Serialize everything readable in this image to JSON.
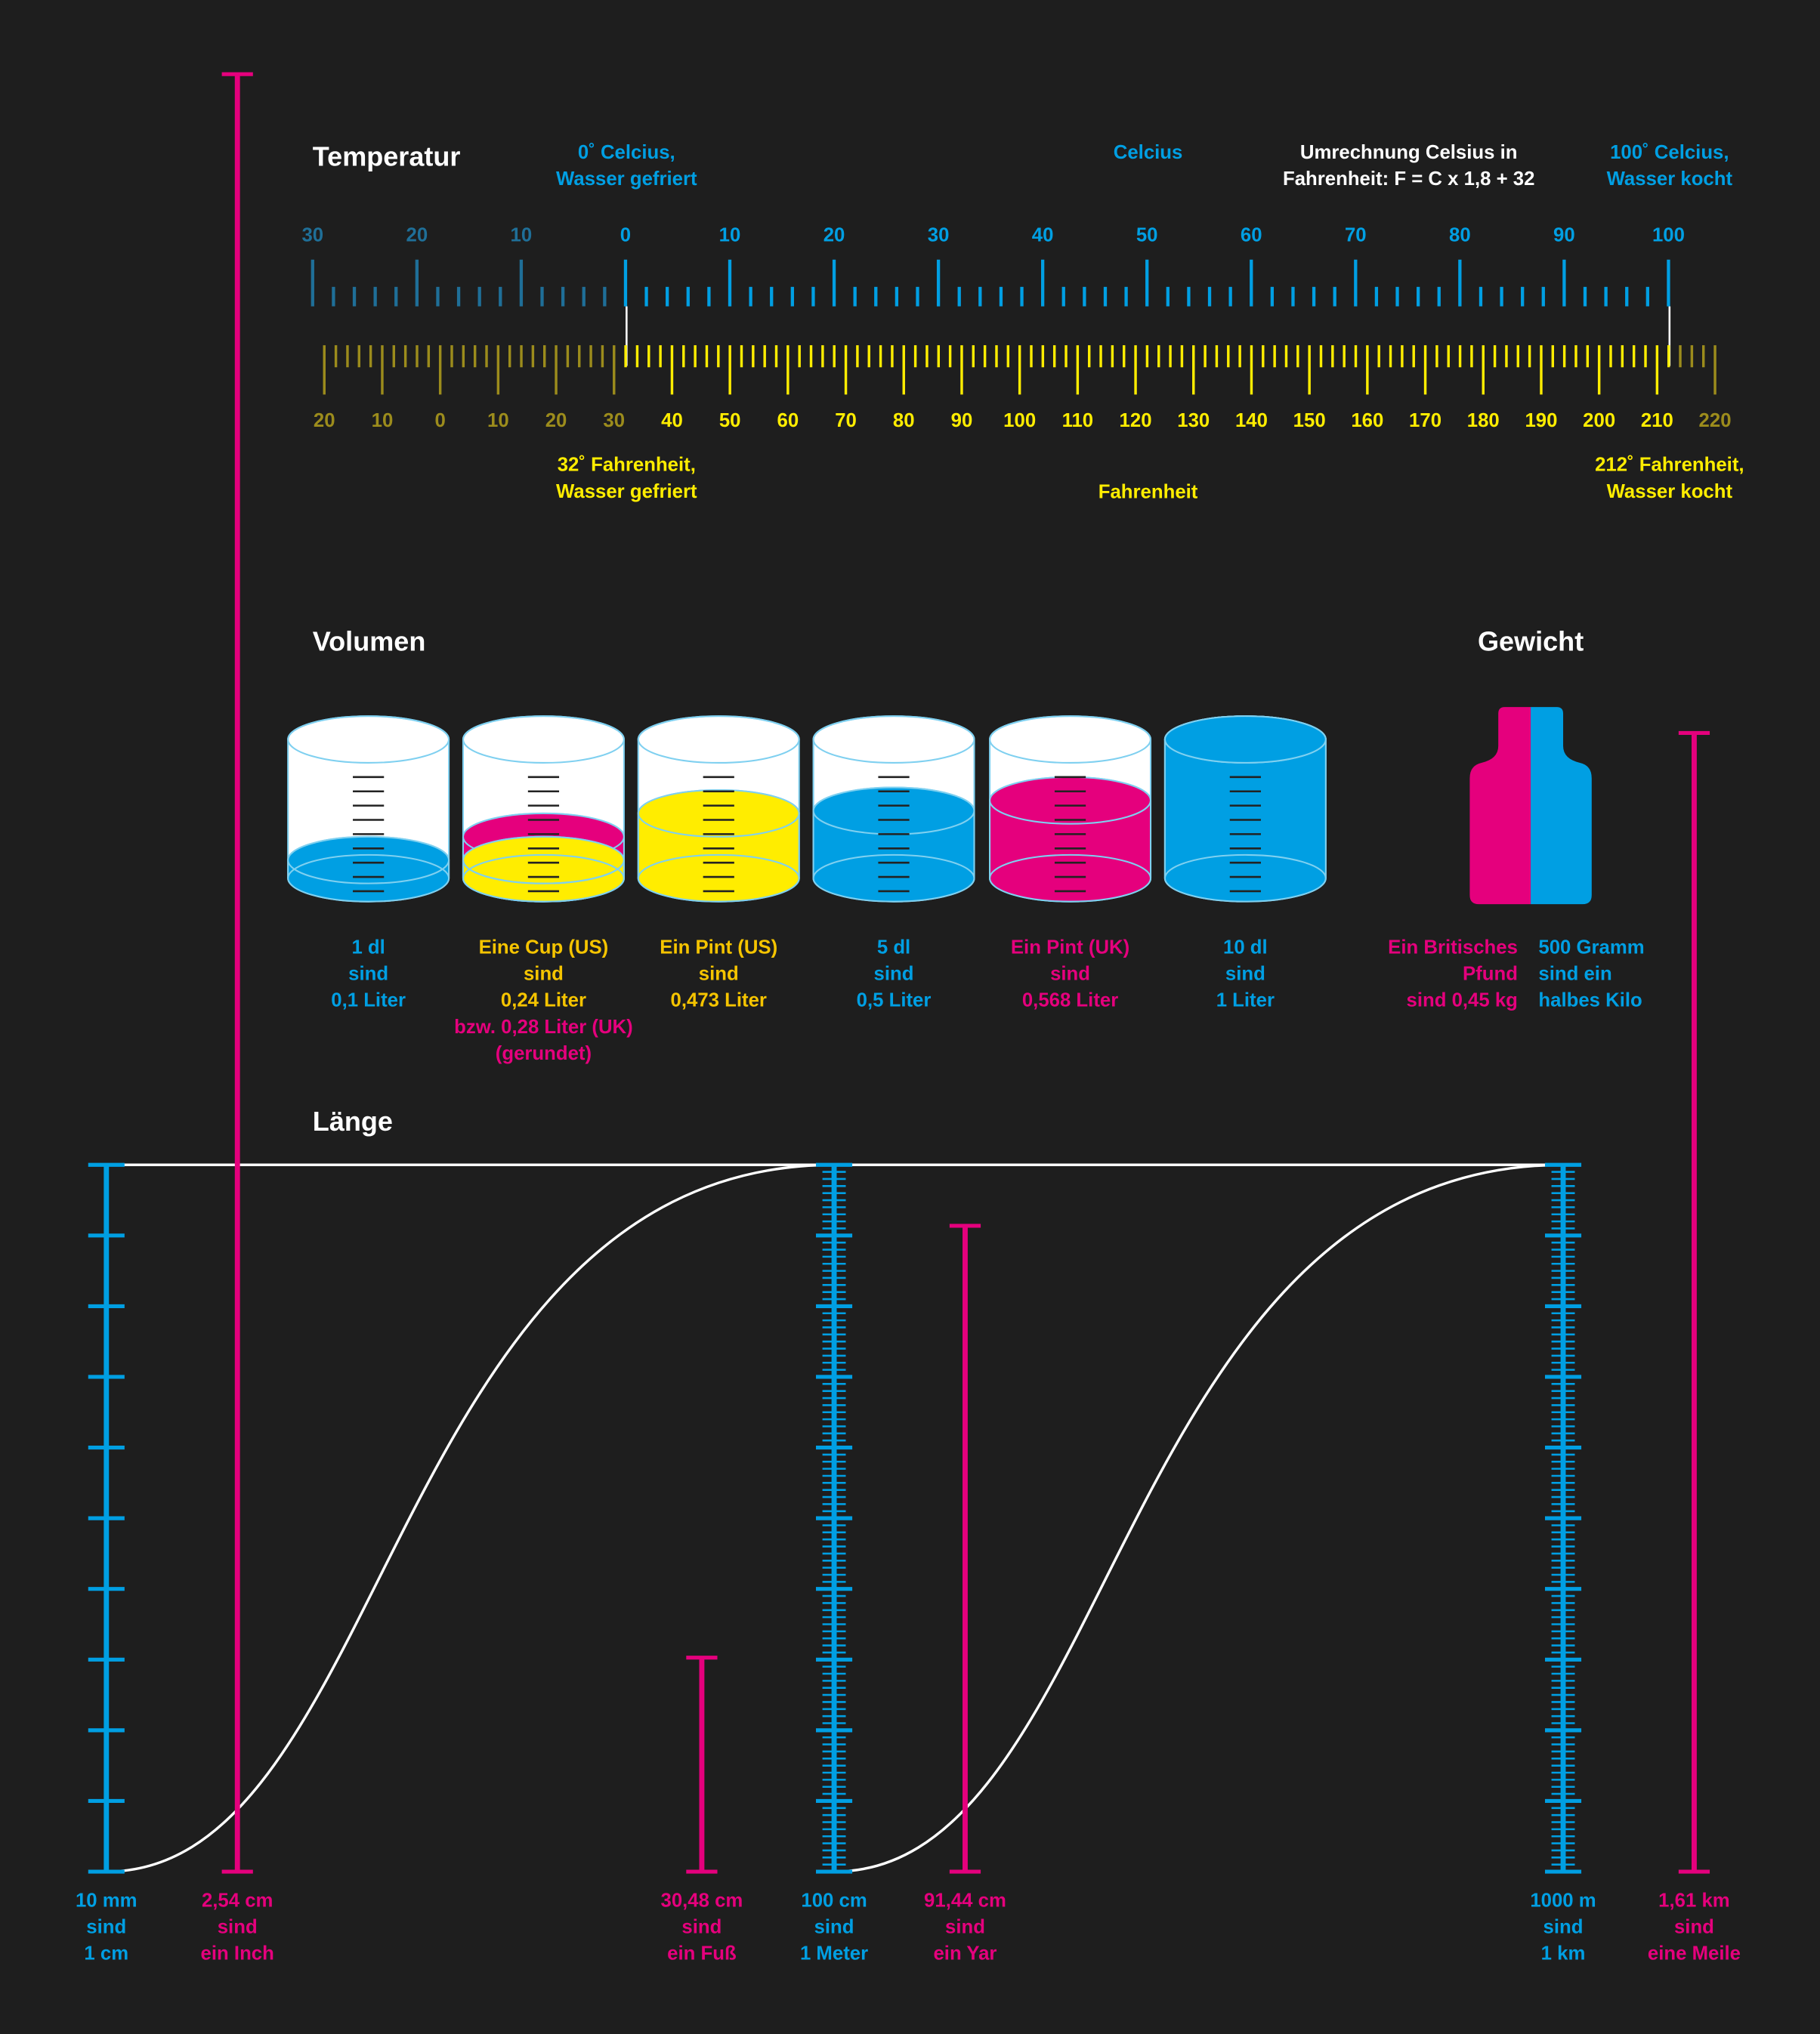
{
  "temperature": {
    "title": "Temperatur",
    "celsius_freezing": [
      "0˚ Celcius,",
      "Wasser gefriert"
    ],
    "celsius_label": "Celcius",
    "formula": [
      "Umrechnung Celsius in",
      "Fahrenheit: F = C x 1,8 + 32"
    ],
    "celsius_boiling": [
      "100˚ Celcius,",
      "Wasser kocht"
    ],
    "celsius_scale": [
      "30",
      "20",
      "10",
      "0",
      "10",
      "20",
      "30",
      "40",
      "50",
      "60",
      "70",
      "80",
      "90",
      "100"
    ],
    "fahrenheit_scale": [
      "20",
      "10",
      "0",
      "10",
      "20",
      "30",
      "40",
      "50",
      "60",
      "70",
      "80",
      "90",
      "100",
      "110",
      "120",
      "130",
      "140",
      "150",
      "160",
      "170",
      "180",
      "190",
      "200",
      "210",
      "220"
    ],
    "fahrenheit_freezing": [
      "32˚ Fahrenheit,",
      "Wasser gefriert"
    ],
    "fahrenheit_label": "Fahrenheit",
    "fahrenheit_boiling": [
      "212˚ Fahrenheit,",
      "Wasser kocht"
    ]
  },
  "volume": {
    "title": "Volumen",
    "items": [
      {
        "caption": [
          "1 dl",
          "sind",
          "0,1 Liter"
        ]
      },
      {
        "caption": [
          "Eine Cup (US)",
          "sind",
          "0,24 Liter",
          "bzw. 0,28 Liter (UK)",
          "(gerundet)"
        ]
      },
      {
        "caption": [
          "Ein Pint (US)",
          "sind",
          "0,473 Liter"
        ]
      },
      {
        "caption": [
          "5 dl",
          "sind",
          "0,5 Liter"
        ]
      },
      {
        "caption": [
          "Ein Pint (UK)",
          "sind",
          "0,568 Liter"
        ]
      },
      {
        "caption": [
          "10 dl",
          "sind",
          "1 Liter"
        ]
      }
    ]
  },
  "weight": {
    "title": "Gewicht",
    "pound": [
      "Ein Britisches",
      "Pfund",
      "sind 0,45 kg"
    ],
    "half_kilo": [
      "500 Gramm",
      "sind ein",
      "halbes Kilo"
    ]
  },
  "length": {
    "title": "Länge",
    "items": [
      {
        "caption": [
          "10 mm",
          "sind",
          "1 cm"
        ]
      },
      {
        "caption": [
          "2,54 cm",
          "sind",
          "ein Inch"
        ]
      },
      {
        "caption": [
          "30,48 cm",
          "sind",
          "ein Fuß"
        ]
      },
      {
        "caption": [
          "100 cm",
          "sind",
          "1 Meter"
        ]
      },
      {
        "caption": [
          "91,44 cm",
          "sind",
          "ein Yar"
        ]
      },
      {
        "caption": [
          "1000 m",
          "sind",
          "1 km"
        ]
      },
      {
        "caption": [
          "1,61 km",
          "sind",
          "eine Meile"
        ]
      }
    ]
  }
}
